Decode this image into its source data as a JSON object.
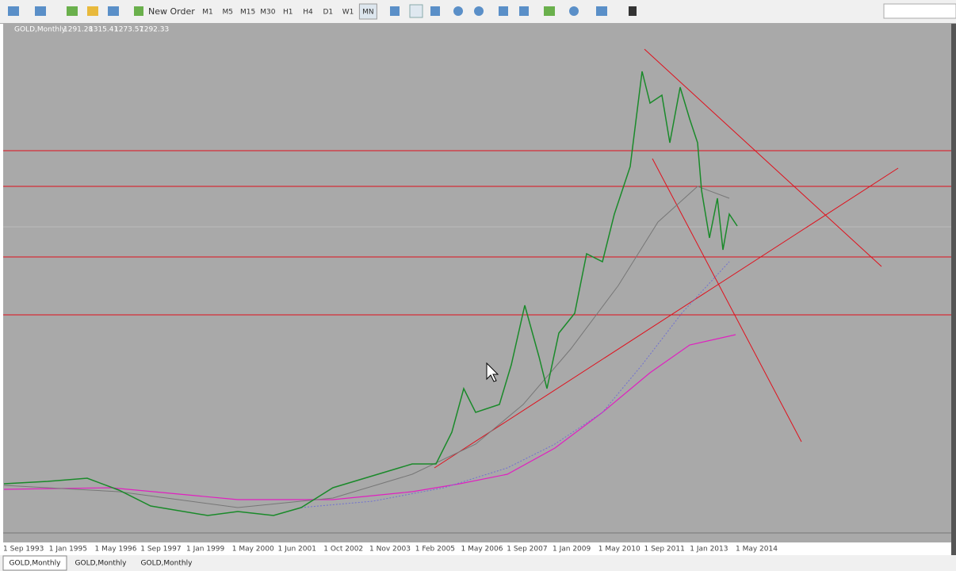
{
  "toolbar": {
    "new_order": "New Order",
    "timeframes": [
      "M1",
      "M5",
      "M15",
      "M30",
      "H1",
      "H4",
      "D1",
      "W1",
      "MN"
    ]
  },
  "chart": {
    "symbol": "GOLD,Monthly",
    "ohlc": [
      1291.28,
      1315.41,
      1273.57,
      1292.33
    ],
    "time_axis": [
      "1 Sep 1993",
      "1 Jan 1995",
      "1 May 1996",
      "1 Sep 1997",
      "1 Jan 1999",
      "1 May 2000",
      "1 Jun 2001",
      "1 Oct 2002",
      "1 Nov 2003",
      "1 Feb 2005",
      "1 May 2006",
      "1 Sep 2007",
      "1 Jan 2009",
      "1 May 2010",
      "1 Sep 2011",
      "1 Jan 2013",
      "1 May 2014"
    ]
  },
  "tabs": [
    "GOLD,Monthly",
    "GOLD,Monthly",
    "GOLD,Monthly"
  ]
}
